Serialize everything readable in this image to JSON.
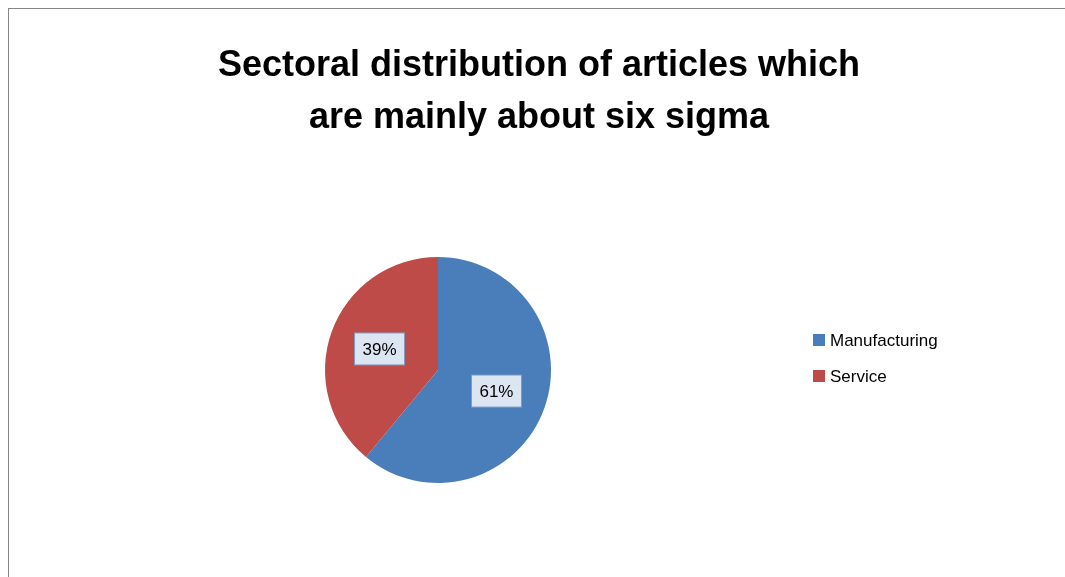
{
  "chart_data": {
    "type": "pie",
    "title": "Sectoral distribution of articles which are mainly about six sigma",
    "categories": [
      "Manufacturing",
      "Service"
    ],
    "values": [
      61,
      39
    ],
    "colors": [
      "#4a7ebb",
      "#be4b48"
    ],
    "value_labels": [
      "61%",
      "39%"
    ],
    "data_labels": true,
    "legend": "right"
  }
}
